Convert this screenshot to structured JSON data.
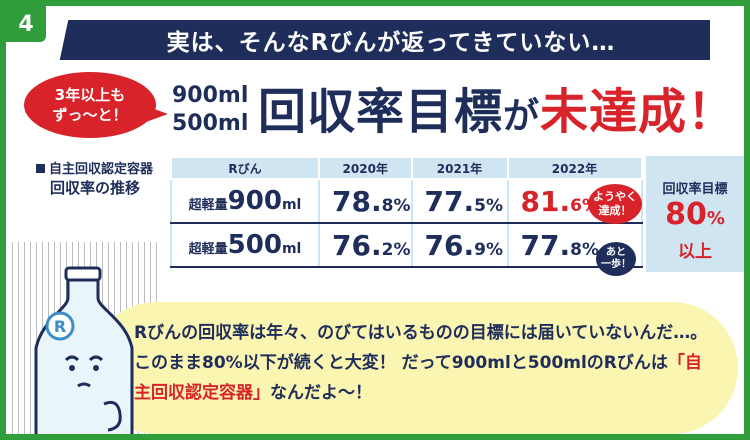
{
  "badge": {
    "number": "4"
  },
  "banner": {
    "text": "実は、そんなRびんが返ってきていない…"
  },
  "bubble": {
    "line1": "3年以上も",
    "line2": "ずっ〜と！"
  },
  "sizes": {
    "line1": "900ml",
    "line2": "500ml"
  },
  "headline": {
    "part1": "回収率目標",
    "part2": "が",
    "part3": "未達成！"
  },
  "side_label": {
    "line1": "自主回収認定容器",
    "line2": "回収率の推移"
  },
  "table": {
    "headers": [
      "Rびん",
      "2020年",
      "2021年",
      "2022年"
    ],
    "rows": [
      {
        "prefix": "超軽量",
        "size": "900",
        "unit": "ml",
        "values": [
          {
            "main": "78.",
            "dec": "8",
            "pct": "%"
          },
          {
            "main": "77.",
            "dec": "5",
            "pct": "%"
          },
          {
            "main": "81.",
            "dec": "6",
            "pct": "%"
          }
        ]
      },
      {
        "prefix": "超軽量",
        "size": "500",
        "unit": "ml",
        "values": [
          {
            "main": "76.",
            "dec": "2",
            "pct": "%"
          },
          {
            "main": "76.",
            "dec": "9",
            "pct": "%"
          },
          {
            "main": "77.",
            "dec": "8",
            "pct": "%"
          }
        ]
      }
    ]
  },
  "notes": {
    "achieved_line1": "ようやく",
    "achieved_line2": "達成！",
    "almost_line1": "あと",
    "almost_line2": "一歩！"
  },
  "target": {
    "label": "回収率目標",
    "value": "80",
    "pct": "%",
    "suffix": "以上"
  },
  "speech": {
    "part1": "Rびんの回収率は年々、のびてはいるものの目標には届いていないんだ…。このまま80%以下が続くと大変！ だって900mlと500mlのRびんは",
    "part2": "「自主回収認定容器」",
    "part3": "なんだよ〜！"
  },
  "colors": {
    "green": "#2e9d3a",
    "navy": "#1f2d5a",
    "red": "#d8232a",
    "lightblue": "#cfe5f2",
    "yellow": "#fbf5b2"
  }
}
